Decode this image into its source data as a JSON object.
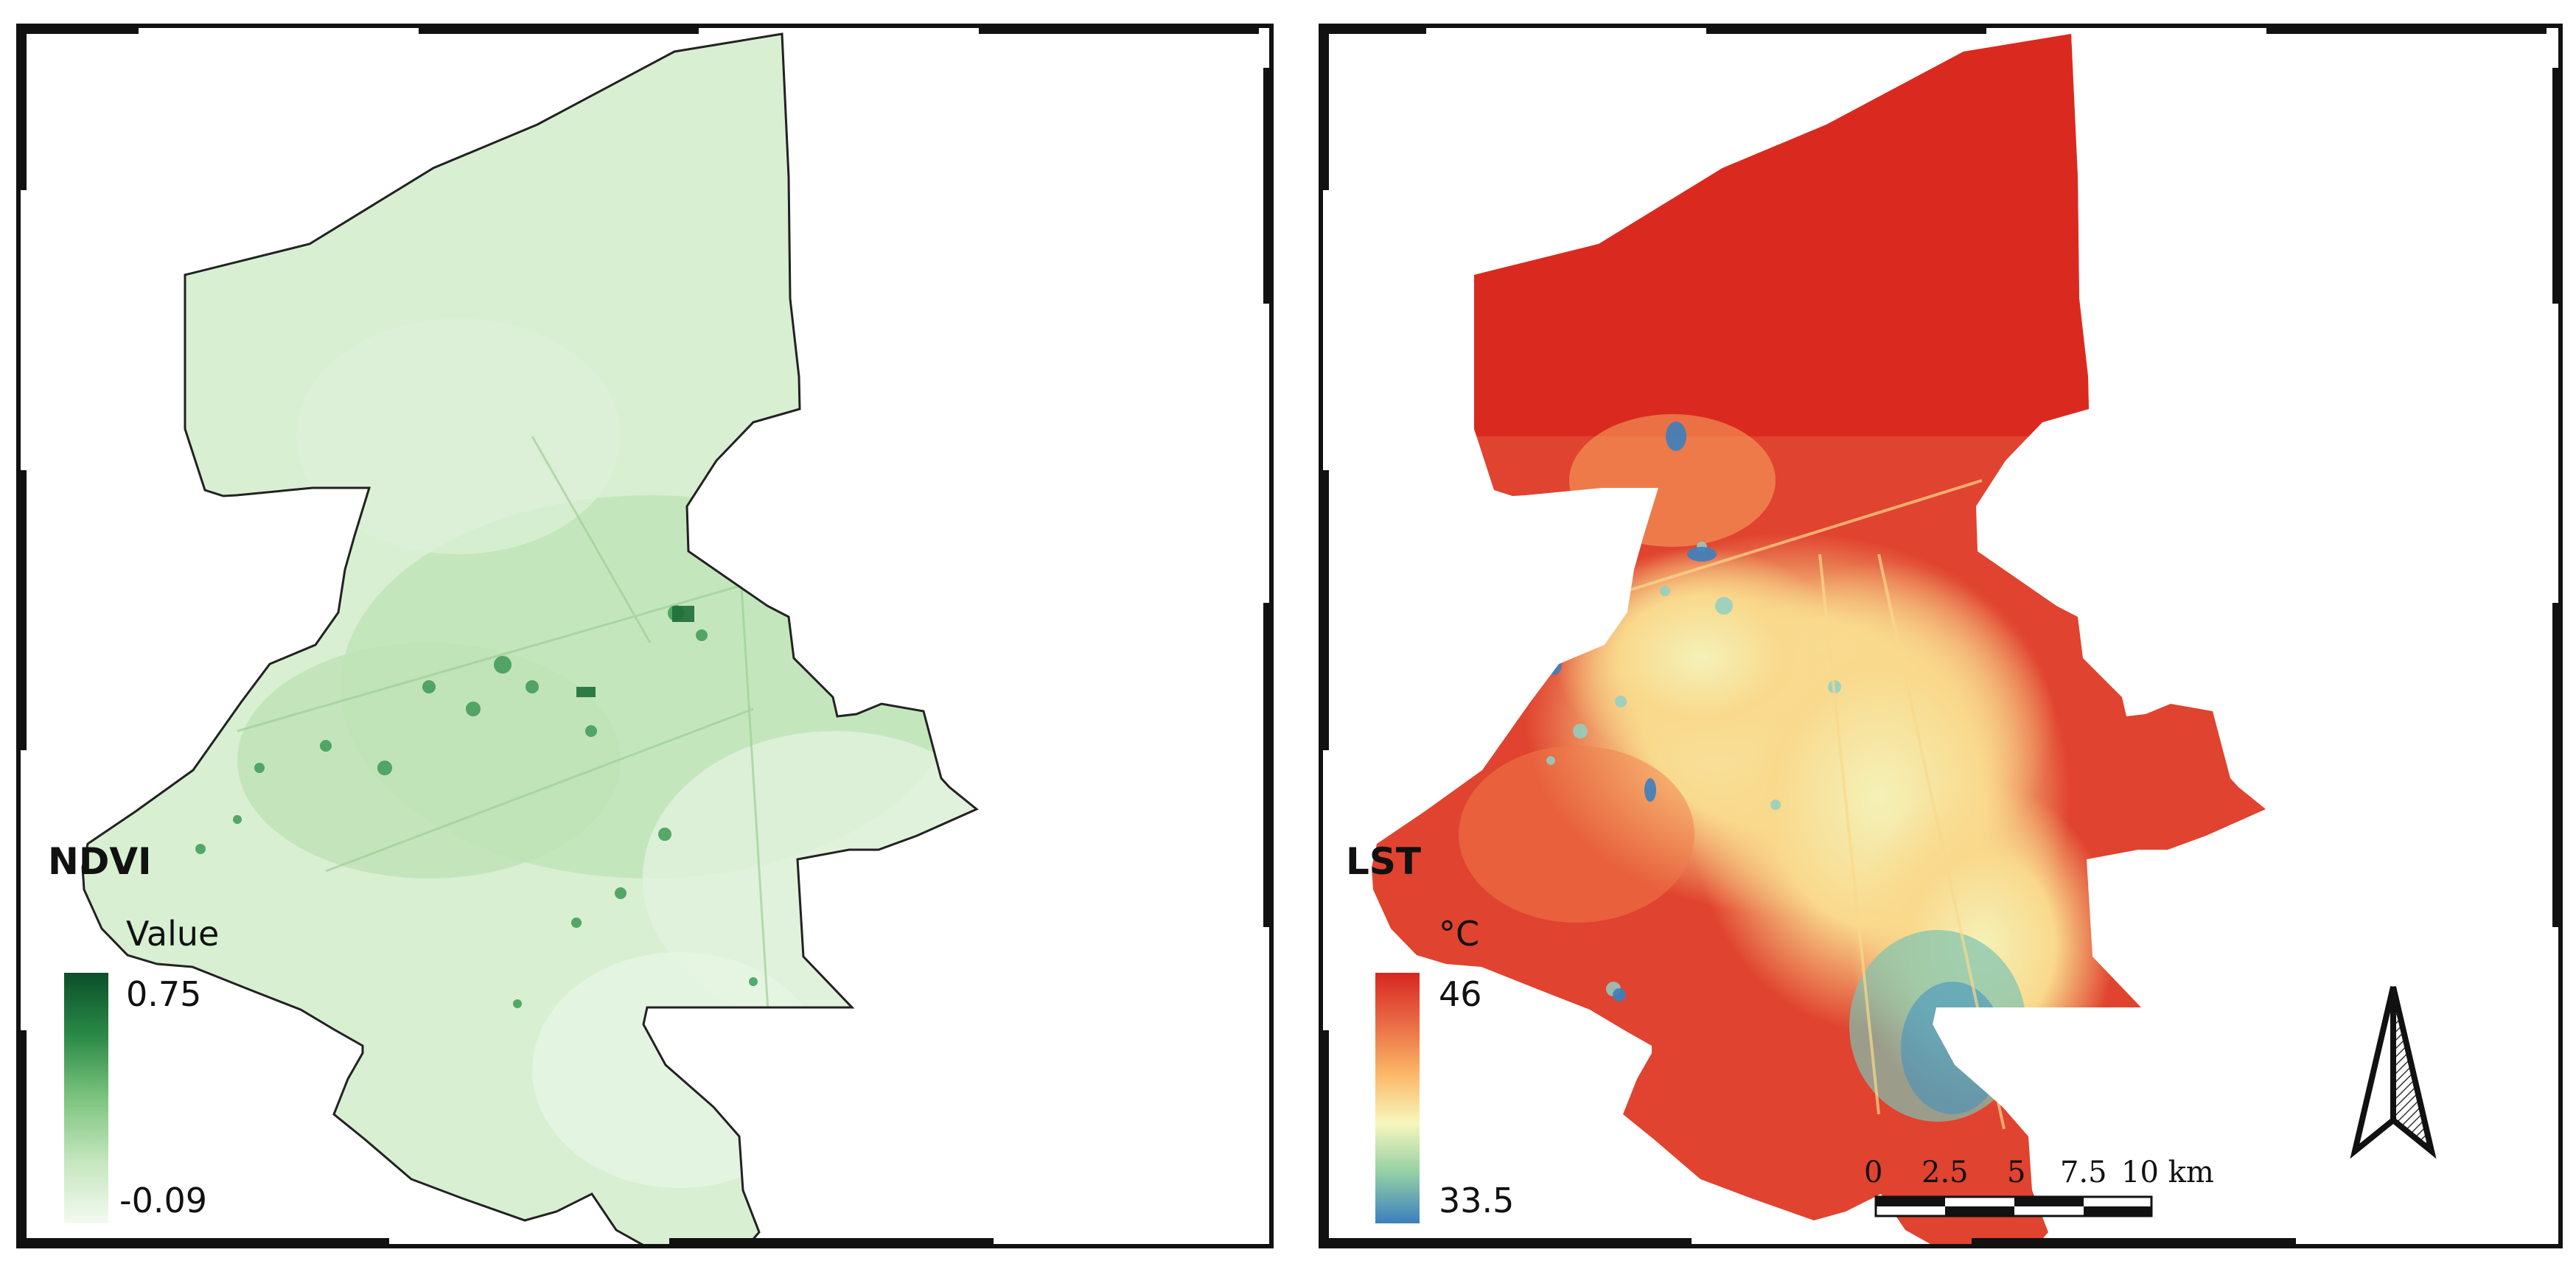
{
  "maps": [
    {
      "title": "NDVI",
      "legend": {
        "heading": "Value",
        "max_label": "0.75",
        "min_label": "-0.09",
        "ramp_colors": [
          "#f3faf1",
          "#c4e6bd",
          "#7cc47e",
          "#2a8a47",
          "#0b4f2a"
        ]
      },
      "fill_color": "#d7efd2"
    },
    {
      "title": "LST",
      "legend": {
        "heading": "°C",
        "max_label": "46",
        "min_label": "33.5",
        "ramp_colors": [
          "#3b7fbf",
          "#93cfa4",
          "#f7f7bd",
          "#fbb666",
          "#ea6a45",
          "#d7261f"
        ]
      },
      "fill_color": "#e2463a",
      "scale_bar": {
        "labels": [
          "0",
          "2.5",
          "5",
          "7.5",
          "10 km"
        ]
      },
      "north_arrow": "north-arrow-icon"
    }
  ]
}
